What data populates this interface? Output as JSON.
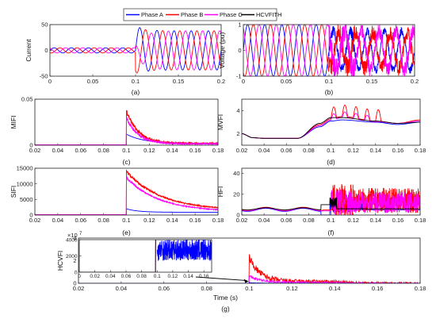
{
  "legend": {
    "entries": [
      {
        "label": "Phase A",
        "color": "#0000ff"
      },
      {
        "label": "Phase B",
        "color": "#ff0000"
      },
      {
        "label": "Phase C",
        "color": "#ff00ff"
      },
      {
        "label": "HCVFITH",
        "color": "#000000"
      }
    ]
  },
  "chart_data": [
    {
      "id": "a",
      "type": "line",
      "caption": "(a)",
      "ylabel": "Current",
      "xlabel": "",
      "xlim": [
        0,
        0.2
      ],
      "ylim": [
        -50,
        50
      ],
      "xticks": [
        "0",
        "0.05",
        "0.1",
        "0.15",
        "0.2"
      ],
      "xtick_values": [
        0,
        0.05,
        0.1,
        0.15,
        0.2
      ],
      "yticks": [
        "-50",
        "0",
        "50"
      ],
      "ytick_values": [
        -50,
        0,
        50
      ],
      "series": [
        {
          "name": "Phase A",
          "color": "#0000ff",
          "shape": "sine",
          "freq": 50,
          "phase_deg": 0,
          "amp_pre": 5,
          "amp_post": 38,
          "peak_post": 48,
          "event_t": 0.1
        },
        {
          "name": "Phase B",
          "color": "#ff0000",
          "shape": "sine",
          "freq": 50,
          "phase_deg": -120,
          "amp_pre": 5,
          "amp_post": 38,
          "peak_post": -45,
          "event_t": 0.1
        },
        {
          "name": "Phase C",
          "color": "#ff00ff",
          "shape": "sine",
          "freq": 50,
          "phase_deg": 120,
          "amp_pre": 5,
          "amp_post": 38,
          "peak_post": -10,
          "event_t": 0.1
        }
      ]
    },
    {
      "id": "b",
      "type": "line",
      "caption": "(b)",
      "ylabel": "Voltage (pu)",
      "xlabel": "",
      "xlim": [
        0,
        0.2
      ],
      "ylim": [
        -1,
        1
      ],
      "xticks": [
        "0",
        "0.05",
        "0.1",
        "0.15",
        "0.2"
      ],
      "xtick_values": [
        0,
        0.05,
        0.1,
        0.15,
        0.2
      ],
      "yticks": [
        "-1",
        "0",
        "1"
      ],
      "ytick_values": [
        -1,
        0,
        1
      ],
      "series": [
        {
          "name": "Phase A",
          "color": "#0000ff",
          "shape": "sine",
          "freq": 50,
          "phase_deg": 0,
          "amp_pre": 1,
          "amp_post": 0.75,
          "event_t": 0.1,
          "noise_post": 0.15
        },
        {
          "name": "Phase B",
          "color": "#ff0000",
          "shape": "sine",
          "freq": 50,
          "phase_deg": -120,
          "amp_pre": 1,
          "amp_post": 0.7,
          "event_t": 0.1,
          "noise_post": 0.3
        },
        {
          "name": "Phase C",
          "color": "#ff00ff",
          "shape": "sine",
          "freq": 50,
          "phase_deg": 120,
          "amp_pre": 1,
          "amp_post": 0.75,
          "event_t": 0.1,
          "noise_post": 0.3
        }
      ]
    },
    {
      "id": "c",
      "type": "line",
      "caption": "(c)",
      "ylabel": "MIFI",
      "xlabel": "",
      "xlim": [
        0.02,
        0.18
      ],
      "ylim": [
        0,
        0.05
      ],
      "xticks": [
        "0.02",
        "0.04",
        "0.06",
        "0.08",
        "0.1",
        "0.12",
        "0.14",
        "0.16",
        "0.18"
      ],
      "xtick_values": [
        0.02,
        0.04,
        0.06,
        0.08,
        0.1,
        0.12,
        0.14,
        0.16,
        0.18
      ],
      "yticks": [
        "0",
        "0.05"
      ],
      "ytick_values": [
        0,
        0.05
      ],
      "series": [
        {
          "name": "Phase A",
          "color": "#0000ff",
          "shape": "spike",
          "base": 0.0005,
          "event_t": 0.1,
          "peak": 0.012,
          "decay": 0.015,
          "tail": 0.002,
          "noise": 0
        },
        {
          "name": "Phase B",
          "color": "#ff0000",
          "shape": "spike",
          "base": 0.0005,
          "event_t": 0.1,
          "peak": 0.038,
          "decay": 0.01,
          "tail": 0.002,
          "noise": 0.002
        },
        {
          "name": "Phase C",
          "color": "#ff00ff",
          "shape": "spike",
          "base": 0.0005,
          "event_t": 0.1,
          "peak": 0.03,
          "decay": 0.01,
          "tail": 0.0015,
          "noise": 0.0015
        }
      ]
    },
    {
      "id": "d",
      "type": "line",
      "caption": "(d)",
      "ylabel": "MVFI",
      "xlabel": "",
      "xlim": [
        0.02,
        0.18
      ],
      "ylim": [
        1,
        5
      ],
      "xticks": [
        "0.02",
        "0.04",
        "0.06",
        "0.08",
        "0.1",
        "0.12",
        "0.14",
        "0.16",
        "0.18"
      ],
      "xtick_values": [
        0.02,
        0.04,
        0.06,
        0.08,
        0.1,
        0.12,
        0.14,
        0.16,
        0.18
      ],
      "yticks": [
        "2",
        "4"
      ],
      "ytick_values": [
        2,
        4
      ],
      "series": [
        {
          "name": "Phase A",
          "color": "#0000ff",
          "shape": "smooth",
          "points": [
            [
              0.02,
              2.0
            ],
            [
              0.03,
              1.65
            ],
            [
              0.04,
              1.6
            ],
            [
              0.07,
              1.6
            ],
            [
              0.09,
              2.6
            ],
            [
              0.1,
              3.1
            ],
            [
              0.11,
              3.2
            ],
            [
              0.14,
              3.0
            ],
            [
              0.16,
              2.8
            ],
            [
              0.18,
              3.0
            ]
          ]
        },
        {
          "name": "Phase B",
          "color": "#ff0000",
          "shape": "smooth",
          "osc": 1.0,
          "osc_from": 0.1,
          "osc_to": 0.145,
          "points": [
            [
              0.02,
              2.0
            ],
            [
              0.03,
              1.65
            ],
            [
              0.04,
              1.6
            ],
            [
              0.07,
              1.6
            ],
            [
              0.09,
              2.8
            ],
            [
              0.1,
              3.3
            ],
            [
              0.11,
              3.5
            ],
            [
              0.14,
              3.1
            ],
            [
              0.16,
              2.9
            ],
            [
              0.18,
              3.2
            ]
          ]
        },
        {
          "name": "Phase C",
          "color": "#ff00ff",
          "shape": "smooth",
          "osc": 0.5,
          "osc_from": 0.1,
          "osc_to": 0.14,
          "points": [
            [
              0.02,
              2.0
            ],
            [
              0.03,
              1.65
            ],
            [
              0.04,
              1.6
            ],
            [
              0.07,
              1.6
            ],
            [
              0.09,
              2.7
            ],
            [
              0.1,
              3.2
            ],
            [
              0.11,
              3.4
            ],
            [
              0.14,
              3.05
            ],
            [
              0.16,
              2.9
            ],
            [
              0.18,
              3.1
            ]
          ]
        },
        {
          "name": "HCVFITH",
          "color": "#000000",
          "shape": "smooth",
          "points": [
            [
              0.02,
              2.0
            ],
            [
              0.03,
              1.65
            ],
            [
              0.04,
              1.6
            ],
            [
              0.07,
              1.6
            ],
            [
              0.09,
              2.9
            ],
            [
              0.1,
              3.4
            ],
            [
              0.11,
              3.4
            ],
            [
              0.14,
              3.1
            ],
            [
              0.16,
              2.9
            ],
            [
              0.18,
              3.0
            ]
          ]
        }
      ]
    },
    {
      "id": "e",
      "type": "line",
      "caption": "(e)",
      "ylabel": "SIFI",
      "xlabel": "",
      "xlim": [
        0.02,
        0.18
      ],
      "ylim": [
        0,
        15000
      ],
      "xticks": [
        "0.02",
        "0.04",
        "0.06",
        "0.08",
        "0.1",
        "0.12",
        "0.14",
        "0.16",
        "0.18"
      ],
      "xtick_values": [
        0.02,
        0.04,
        0.06,
        0.08,
        0.1,
        0.12,
        0.14,
        0.16,
        0.18
      ],
      "yticks": [
        "0",
        "5000",
        "10000",
        "15000"
      ],
      "ytick_values": [
        0,
        5000,
        10000,
        15000
      ],
      "series": [
        {
          "name": "Phase A",
          "color": "#0000ff",
          "shape": "spike",
          "base": 100,
          "event_t": 0.1,
          "peak": 2000,
          "decay": 0.01,
          "tail": 900,
          "noise": 0
        },
        {
          "name": "Phase B",
          "color": "#ff0000",
          "shape": "spike",
          "base": 100,
          "event_t": 0.1,
          "peak": 14000,
          "decay": 0.03,
          "tail": 1500,
          "noise": 400
        },
        {
          "name": "Phase C",
          "color": "#ff00ff",
          "shape": "spike",
          "base": 100,
          "event_t": 0.1,
          "peak": 12000,
          "decay": 0.028,
          "tail": 1100,
          "noise": 300
        }
      ]
    },
    {
      "id": "f",
      "type": "line",
      "caption": "(f)",
      "ylabel": "HFI",
      "xlabel": "",
      "xlim": [
        0.02,
        0.18
      ],
      "ylim": [
        0,
        45
      ],
      "xticks": [
        "0.02",
        "0.04",
        "0.06",
        "0.08",
        "0.1",
        "0.12",
        "0.14",
        "0.16",
        "0.18"
      ],
      "xtick_values": [
        0.02,
        0.04,
        0.06,
        0.08,
        0.1,
        0.12,
        0.14,
        0.16,
        0.18
      ],
      "yticks": [
        "0",
        "20",
        "40"
      ],
      "ytick_values": [
        0,
        20,
        40
      ],
      "series": [
        {
          "name": "Phase A",
          "color": "#0000ff",
          "shape": "hfi",
          "pre_mean": 5,
          "pre_amp": 1.5,
          "dip_t": 0.095,
          "dip": 0,
          "post_mean": 8,
          "post_amp": 4,
          "post_end": 0.13
        },
        {
          "name": "Phase B",
          "color": "#ff0000",
          "shape": "hfi",
          "pre_mean": 6,
          "pre_amp": 1.5,
          "dip_t": 0.097,
          "dip": 5,
          "post_mean": 14,
          "post_amp": 12
        },
        {
          "name": "Phase C",
          "color": "#ff00ff",
          "shape": "hfi",
          "pre_mean": 5.5,
          "pre_amp": 1.5,
          "dip_t": 0.096,
          "dip": 4,
          "post_mean": 12,
          "post_amp": 10
        },
        {
          "name": "HCVFITH",
          "color": "#000000",
          "shape": "hfi",
          "pre_mean": 6,
          "pre_amp": 1,
          "dip_t": 0.095,
          "dip": 10,
          "post_mean": 12,
          "post_amp": 4,
          "post_end": 0.105
        }
      ]
    },
    {
      "id": "g",
      "type": "line",
      "caption": "(g)",
      "ylabel": "HCVFI",
      "xlabel": "Time (s)",
      "xlim": [
        0.02,
        0.18
      ],
      "ylim": [
        0,
        4
      ],
      "y_multiplier": "×10",
      "y_multiplier_exp": "7",
      "xticks": [
        "0.02",
        "0.04",
        "0.06",
        "0.08",
        "0.1",
        "0.12",
        "0.14",
        "0.16",
        "0.18"
      ],
      "xtick_values": [
        0.02,
        0.04,
        0.06,
        0.08,
        0.1,
        0.12,
        0.14,
        0.16,
        0.18
      ],
      "yticks": [
        "0",
        "2",
        "4"
      ],
      "ytick_values": [
        0,
        2,
        4
      ],
      "series": [
        {
          "name": "Phase B",
          "color": "#ff0000",
          "shape": "spike",
          "base": 0,
          "event_t": 0.1,
          "peak": 2.3,
          "decay": 0.005,
          "tail": 0.15,
          "noise": 0.25,
          "tail_end": 0.14
        },
        {
          "name": "Phase C",
          "color": "#ff00ff",
          "shape": "spike",
          "base": 0,
          "event_t": 0.1,
          "peak": 0.6,
          "decay": 0.006,
          "tail": 0.08,
          "noise": 0.1,
          "tail_end": 0.14
        },
        {
          "name": "Phase A",
          "color": "#0000ff",
          "shape": "spike",
          "base": 0,
          "event_t": 0.1,
          "peak": 0.05,
          "decay": 0.004,
          "tail": 0.01,
          "noise": 0.01,
          "tail_end": 0.12
        }
      ],
      "inset": {
        "xlim": [
          0,
          0.17
        ],
        "ylim": [
          0,
          4000
        ],
        "xticks": [
          "0",
          "0.02",
          "0.04",
          "0.06",
          "0.08",
          "0.1",
          "0.12",
          "0.14",
          "0.16"
        ],
        "xtick_values": [
          0,
          0.02,
          0.04,
          0.06,
          0.08,
          0.1,
          0.12,
          0.14,
          0.16
        ],
        "yticks": [
          "0",
          "2000",
          "4000"
        ],
        "ytick_values": [
          0,
          2000,
          4000
        ],
        "series": [
          {
            "name": "Phase C",
            "color": "#ff00ff",
            "shape": "step",
            "event_t": 0.098,
            "pre": 0,
            "post": 4000
          },
          {
            "name": "HCVFITH",
            "color": "#000000",
            "shape": "step",
            "event_t": 0.098,
            "pre": 0,
            "post": 4000
          },
          {
            "name": "Phase A",
            "color": "#0000ff",
            "shape": "noisy",
            "start": 0.1,
            "end": 0.17,
            "mean": 2700,
            "amp": 1300
          }
        ]
      }
    }
  ]
}
